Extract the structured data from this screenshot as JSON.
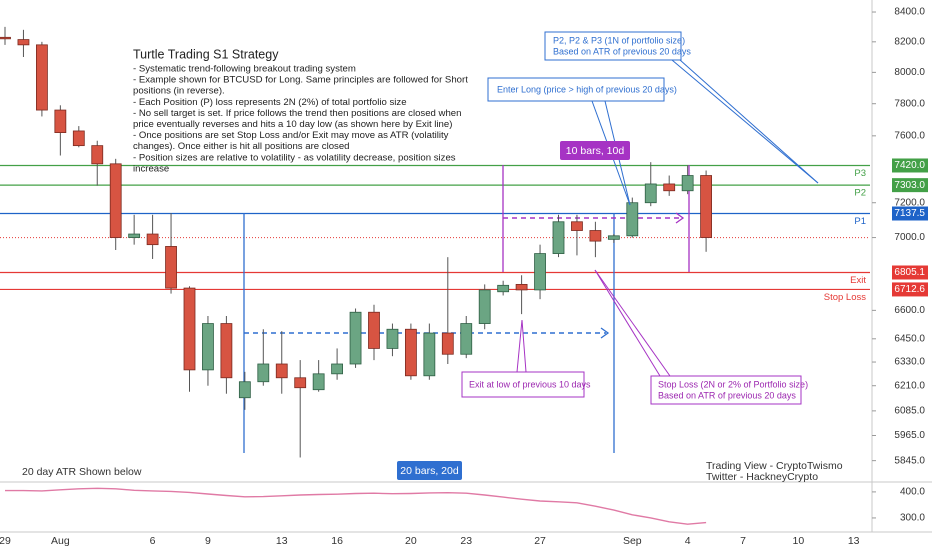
{
  "chart_data": {
    "type": "candlestick",
    "categories": [
      "29",
      null,
      null,
      "Aug",
      null,
      null,
      null,
      null,
      "6",
      null,
      null,
      "9",
      null,
      null,
      null,
      "13",
      null,
      null,
      "16",
      null,
      null,
      null,
      "20",
      null,
      null,
      "23",
      null,
      null,
      null,
      "27",
      null,
      null,
      null,
      null,
      "Sep",
      null,
      null,
      "4",
      null,
      null,
      "7",
      null,
      null,
      "10",
      null,
      null,
      "13"
    ],
    "open": [
      8230,
      8215,
      8180,
      7760,
      7630,
      7540,
      7430,
      7000,
      7020,
      6950,
      6720,
      6290,
      6530,
      6150,
      6230,
      6320,
      6250,
      6190,
      6270,
      6320,
      6590,
      6400,
      6500,
      6260,
      6480,
      6370,
      6530,
      6700,
      6740,
      6710,
      6910,
      7090,
      7040,
      6990,
      7010,
      7200,
      7310,
      7270,
      7360,
      null,
      null,
      null,
      null,
      null,
      null,
      null,
      null
    ],
    "high": [
      8300,
      8280,
      8200,
      7790,
      7660,
      7570,
      7460,
      7130,
      7130,
      7140,
      6730,
      6570,
      6570,
      6280,
      6500,
      6490,
      6340,
      6340,
      6400,
      6610,
      6630,
      6530,
      6530,
      6530,
      6890,
      6570,
      6740,
      6760,
      6790,
      6960,
      7130,
      7130,
      7090,
      7020,
      7230,
      7440,
      7360,
      7420,
      7390,
      null,
      null,
      null,
      null,
      null,
      null,
      null,
      null
    ],
    "low": [
      8180,
      8100,
      7720,
      7480,
      7530,
      7300,
      6930,
      6960,
      6880,
      6690,
      6180,
      6210,
      6170,
      6090,
      6210,
      6170,
      5860,
      6180,
      6240,
      6300,
      6340,
      6360,
      6240,
      6240,
      6320,
      6350,
      6500,
      6680,
      6580,
      6660,
      6890,
      6900,
      6890,
      6970,
      7000,
      7180,
      7240,
      7250,
      6920,
      null,
      null,
      null,
      null,
      null,
      null,
      null,
      null
    ],
    "close": [
      8220,
      8180,
      7760,
      7620,
      7540,
      7430,
      7000,
      7020,
      6960,
      6720,
      6290,
      6530,
      6250,
      6230,
      6320,
      6250,
      6200,
      6270,
      6320,
      6590,
      6400,
      6500,
      6260,
      6480,
      6370,
      6530,
      6710,
      6735,
      6710,
      6910,
      7090,
      7040,
      6980,
      7010,
      7200,
      7310,
      7270,
      7360,
      7000,
      null,
      null,
      null,
      null,
      null,
      null,
      null,
      null
    ],
    "up_color": "#6ba583",
    "down_color": "#d75442",
    "log_scale": true,
    "ylim": [
      5745,
      8482
    ],
    "yticks": [
      {
        "value": 8400,
        "label": "8400.0"
      },
      {
        "value": 8200,
        "label": "8200.0"
      },
      {
        "value": 8000,
        "label": "8000.0"
      },
      {
        "value": 7800,
        "label": "7800.0"
      },
      {
        "value": 7600,
        "label": "7600.0"
      },
      {
        "value": 7200,
        "label": "7200.0"
      },
      {
        "value": 7000,
        "label": "7000.0"
      },
      {
        "value": 6600,
        "label": "6600.0"
      },
      {
        "value": 6450,
        "label": "6450.0"
      },
      {
        "value": 6330,
        "label": "6330.0"
      },
      {
        "value": 6210,
        "label": "6210.0"
      },
      {
        "value": 6085,
        "label": "6085.0"
      },
      {
        "value": 5965,
        "label": "5965.0"
      },
      {
        "value": 5845,
        "label": "5845.0"
      }
    ],
    "levels": [
      {
        "name": "P3",
        "value": 7420,
        "value_label": "7420.0",
        "color": "#43a047"
      },
      {
        "name": "P2",
        "value": 7303,
        "value_label": "7303.0",
        "color": "#43a047"
      },
      {
        "name": "P1",
        "value": 7137.5,
        "value_label": "7137.5",
        "color": "#1e63c8"
      },
      {
        "name": "Exit",
        "value": 6805.1,
        "value_label": "6805.1",
        "color": "#e53935"
      },
      {
        "name": "Stop Loss",
        "value": 6712.6,
        "value_label": "6712.6",
        "color": "#e53935"
      }
    ],
    "atr": {
      "values": [
        405,
        405,
        404,
        408,
        412,
        414,
        412,
        406,
        404,
        402,
        398,
        392,
        386,
        381,
        382,
        385,
        388,
        390,
        391,
        394,
        395,
        393,
        394,
        396,
        397,
        395,
        388,
        380,
        372,
        365,
        362,
        358,
        345,
        330,
        312,
        300,
        285,
        276,
        282,
        null,
        null,
        null,
        null,
        null,
        null,
        null,
        null
      ],
      "color": "#e07aa5",
      "ylim": [
        246,
        438
      ],
      "yticks": [
        {
          "value": 400,
          "label": "400.0"
        },
        {
          "value": 300,
          "label": "300.0"
        }
      ]
    },
    "notes": {
      "title": "Turtle Trading S1 Strategy",
      "lines": [
        "- Systematic trend-following breakout trading system",
        "- Example shown for BTCUSD for Long. Same principles are followed for Short",
        "positions (in reverse).",
        "- Each Position (P) loss represents 2N (2%) of total portfolio size",
        "- No sell target is set. If price follows the trend then positions are closed when",
        "price eventually reverses and hits a 10 day low (as shown here by Exit line)",
        "- Once positions are set Stop Loss and/or Exit may move as ATR (volatility",
        "changes). Once either is hit all positions are closed",
        "- Position sizes are relative to volatility - as volatility decrease, position sizes",
        "increase"
      ]
    },
    "annotations": {
      "positions": [
        "P2, P2 & P3 (1N of portfolio size)",
        "Based on ATR of previous 20 days"
      ],
      "enter": "Enter Long (price > high of previous 20 days)",
      "ten_bars": "10 bars, 10d",
      "twenty_bars": "20 bars, 20d",
      "exit": "Exit at low of previous 10 days",
      "stop": [
        "Stop Loss (2N or 2% of Portfolio size)",
        "Based on ATR of previous 20 days"
      ],
      "atr_note": "20 day ATR Shown below",
      "credits": [
        "Trading View - CryptoTwismo",
        "Twitter - HackneyCrypto"
      ]
    }
  }
}
